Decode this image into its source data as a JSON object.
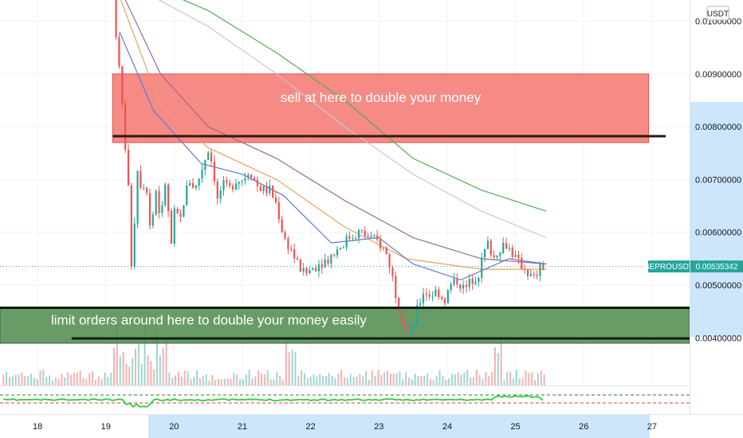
{
  "chart_data": {
    "type": "candlestick",
    "symbol": "BEPROUSDT",
    "current_price": "0.00535342",
    "price_unit": "USDT",
    "ylim": [
      0.0031,
      0.0104
    ],
    "y_ticks": [
      {
        "value": 0.01,
        "label": "0.01000000"
      },
      {
        "value": 0.009,
        "label": "0.00900000"
      },
      {
        "value": 0.008,
        "label": "0.00800000"
      },
      {
        "value": 0.007,
        "label": "0.00700000"
      },
      {
        "value": 0.006,
        "label": "0.00600000"
      },
      {
        "value": 0.005,
        "label": "0.00500000"
      },
      {
        "value": 0.004,
        "label": "0.00400000"
      }
    ],
    "x_range": [
      17.45,
      27.55
    ],
    "x_ticks": [
      {
        "value": 18,
        "label": "18"
      },
      {
        "value": 19,
        "label": "19"
      },
      {
        "value": 20,
        "label": "20"
      },
      {
        "value": 21,
        "label": "21"
      },
      {
        "value": 22,
        "label": "22"
      },
      {
        "value": 23,
        "label": "23"
      },
      {
        "value": 24,
        "label": "24"
      },
      {
        "value": 25,
        "label": "25"
      },
      {
        "value": 26,
        "label": "26"
      },
      {
        "value": 27,
        "label": "27"
      }
    ],
    "price_path": [
      [
        19.15,
        0.0105
      ],
      [
        19.2,
        0.0097
      ],
      [
        19.25,
        0.0089
      ],
      [
        19.3,
        0.0082
      ],
      [
        19.38,
        0.0067
      ],
      [
        19.43,
        0.0051
      ],
      [
        19.47,
        0.0064
      ],
      [
        19.52,
        0.0074
      ],
      [
        19.58,
        0.0066
      ],
      [
        19.62,
        0.0072
      ],
      [
        19.7,
        0.006
      ],
      [
        19.78,
        0.0068
      ],
      [
        19.85,
        0.0062
      ],
      [
        19.92,
        0.007
      ],
      [
        20.0,
        0.0057
      ],
      [
        20.06,
        0.0065
      ],
      [
        20.12,
        0.0061
      ],
      [
        20.2,
        0.0067
      ],
      [
        20.28,
        0.007
      ],
      [
        20.35,
        0.0068
      ],
      [
        20.45,
        0.0072
      ],
      [
        20.55,
        0.0076
      ],
      [
        20.62,
        0.0072
      ],
      [
        20.68,
        0.0066
      ],
      [
        20.75,
        0.0069
      ],
      [
        20.85,
        0.0068
      ],
      [
        20.95,
        0.007
      ],
      [
        21.05,
        0.007
      ],
      [
        21.15,
        0.0072
      ],
      [
        21.25,
        0.0069
      ],
      [
        21.35,
        0.0068
      ],
      [
        21.45,
        0.0068
      ],
      [
        21.55,
        0.0065
      ],
      [
        21.65,
        0.0059
      ],
      [
        21.75,
        0.0057
      ],
      [
        21.85,
        0.0054
      ],
      [
        21.95,
        0.0052
      ],
      [
        22.05,
        0.0053
      ],
      [
        22.15,
        0.0054
      ],
      [
        22.3,
        0.0055
      ],
      [
        22.45,
        0.0057
      ],
      [
        22.6,
        0.0059
      ],
      [
        22.75,
        0.006
      ],
      [
        22.9,
        0.0059
      ],
      [
        23.05,
        0.0058
      ],
      [
        23.15,
        0.0056
      ],
      [
        23.22,
        0.0053
      ],
      [
        23.3,
        0.0048
      ],
      [
        23.38,
        0.0044
      ],
      [
        23.45,
        0.0041
      ],
      [
        23.52,
        0.0041
      ],
      [
        23.6,
        0.0045
      ],
      [
        23.7,
        0.0049
      ],
      [
        23.8,
        0.0048
      ],
      [
        23.9,
        0.0049
      ],
      [
        24.0,
        0.0047
      ],
      [
        24.1,
        0.005
      ],
      [
        24.2,
        0.0051
      ],
      [
        24.3,
        0.0049
      ],
      [
        24.4,
        0.0051
      ],
      [
        24.5,
        0.0052
      ],
      [
        24.58,
        0.0056
      ],
      [
        24.65,
        0.0058
      ],
      [
        24.72,
        0.0055
      ],
      [
        24.8,
        0.0057
      ],
      [
        24.9,
        0.0058
      ],
      [
        25.0,
        0.0056
      ],
      [
        25.1,
        0.0054
      ],
      [
        25.2,
        0.0053
      ],
      [
        25.3,
        0.0051
      ],
      [
        25.4,
        0.0053
      ],
      [
        25.45,
        0.00535
      ]
    ],
    "moving_averages": [
      {
        "color": "#c8c8c8",
        "points": [
          [
            19.35,
            0.0107
          ],
          [
            20.5,
            0.0099
          ],
          [
            21.5,
            0.009
          ],
          [
            22.5,
            0.008
          ],
          [
            23.5,
            0.0071
          ],
          [
            24.5,
            0.0064
          ],
          [
            25.45,
            0.0059
          ]
        ]
      },
      {
        "color": "#4caf50",
        "points": [
          [
            19.6,
            0.0107
          ],
          [
            20.5,
            0.0102
          ],
          [
            21.5,
            0.0094
          ],
          [
            22.5,
            0.0085
          ],
          [
            23.5,
            0.0074
          ],
          [
            24.5,
            0.0068
          ],
          [
            25.45,
            0.0064
          ]
        ]
      },
      {
        "color": "#9c6b8f",
        "points": [
          [
            19.25,
            0.0105
          ],
          [
            19.8,
            0.009
          ],
          [
            20.5,
            0.008
          ],
          [
            21.5,
            0.0074
          ],
          [
            22.5,
            0.0066
          ],
          [
            23.5,
            0.0059
          ],
          [
            24.5,
            0.0055
          ],
          [
            25.45,
            0.0054
          ]
        ]
      },
      {
        "color": "#f0a060",
        "points": [
          [
            19.22,
            0.0104
          ],
          [
            19.8,
            0.0084
          ],
          [
            20.5,
            0.0076
          ],
          [
            21.5,
            0.007
          ],
          [
            22.5,
            0.0061
          ],
          [
            23.4,
            0.0055
          ],
          [
            24.5,
            0.0053
          ],
          [
            25.45,
            0.0053
          ]
        ]
      },
      {
        "color": "#5b7bd5",
        "points": [
          [
            19.2,
            0.0098
          ],
          [
            19.7,
            0.0083
          ],
          [
            20.4,
            0.0073
          ],
          [
            21.0,
            0.0071
          ],
          [
            21.6,
            0.0067
          ],
          [
            22.3,
            0.0058
          ],
          [
            23.0,
            0.0059
          ],
          [
            23.5,
            0.0054
          ],
          [
            24.2,
            0.0051
          ],
          [
            24.9,
            0.0055
          ],
          [
            25.45,
            0.0054
          ]
        ]
      }
    ],
    "zones": [
      {
        "label": "sell at here to double your money",
        "x_start": 19.1,
        "x_end": 26.95,
        "y_top": 0.009,
        "y_bottom": 0.0077,
        "fill": "#f4726b"
      },
      {
        "label": "limit orders around here to double your money easily",
        "x_start": 17.45,
        "x_end": 27.55,
        "y_top": 0.00457,
        "y_bottom": 0.0039,
        "fill": "#4e8b4c"
      }
    ],
    "horizontal_lines": [
      {
        "x_start": 19.1,
        "x_end": 27.2,
        "y": 0.00782,
        "color": "#2e1a12"
      },
      {
        "x_start": 17.45,
        "x_end": 27.55,
        "y": 0.00457,
        "color": "#0c1e0c"
      },
      {
        "x_start": 18.5,
        "x_end": 27.55,
        "y": 0.00399,
        "color": "#0c1e0c"
      }
    ]
  }
}
